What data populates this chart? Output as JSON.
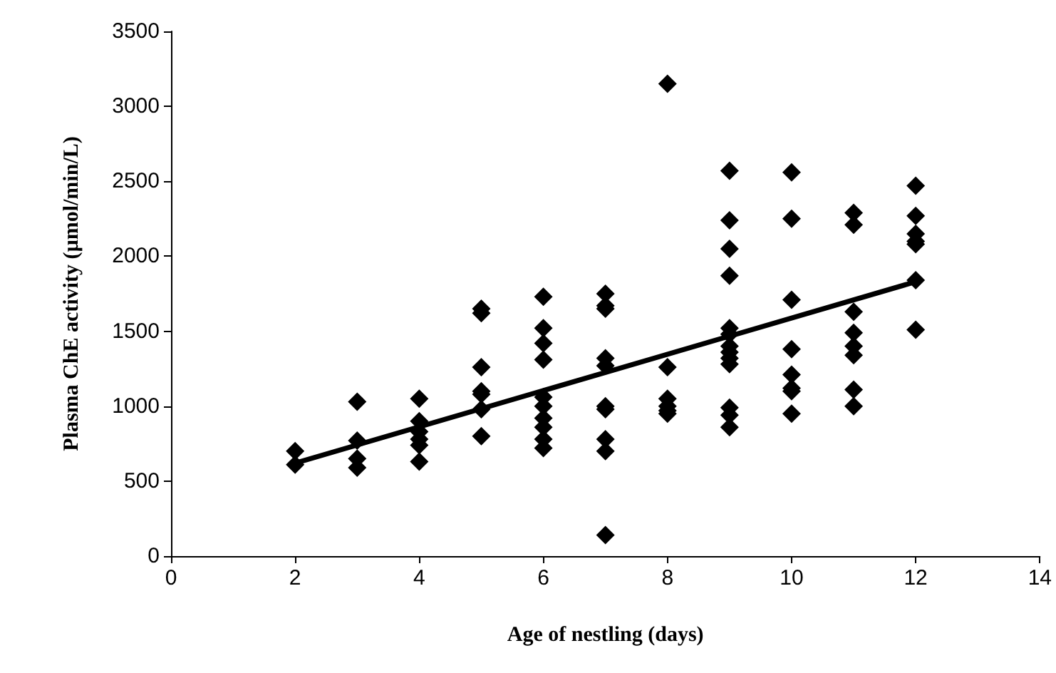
{
  "chart_data": {
    "type": "scatter",
    "xlabel": "Age of nestling (days)",
    "ylabel": "Plasma ChE activity (µmol/min/L)",
    "xlim": [
      0,
      14
    ],
    "xticks": [
      0,
      2,
      4,
      6,
      8,
      10,
      12,
      14
    ],
    "ylim": [
      0,
      3500
    ],
    "yticks": [
      0,
      500,
      1000,
      1500,
      2000,
      2500,
      3000,
      3500
    ],
    "grid": false,
    "marker": "diamond",
    "series": [
      {
        "color": "#000000",
        "x": [
          2,
          2,
          3,
          3,
          3,
          3,
          4,
          4,
          4,
          4,
          4,
          4,
          5,
          5,
          5,
          5,
          5,
          5,
          5,
          6,
          6,
          6,
          6,
          6,
          6,
          6,
          6,
          6,
          6,
          7,
          7,
          7,
          7,
          7,
          7,
          7,
          7,
          7,
          7,
          8,
          8,
          8,
          8,
          8,
          8,
          9,
          9,
          9,
          9,
          9,
          9,
          9,
          9,
          9,
          9,
          9,
          9,
          9,
          10,
          10,
          10,
          10,
          10,
          10,
          10,
          10,
          11,
          11,
          11,
          11,
          11,
          11,
          11,
          11,
          12,
          12,
          12,
          12,
          12,
          12,
          12
        ],
        "values": [
          700,
          610,
          1030,
          770,
          650,
          590,
          1050,
          900,
          830,
          780,
          740,
          630,
          1650,
          1620,
          1260,
          1100,
          1080,
          980,
          800,
          1730,
          1520,
          1420,
          1310,
          1060,
          1000,
          920,
          860,
          780,
          720,
          1750,
          1670,
          1650,
          1320,
          1270,
          1000,
          980,
          780,
          700,
          140,
          3150,
          1260,
          1050,
          1000,
          970,
          950,
          2570,
          2240,
          2050,
          1870,
          1520,
          1480,
          1400,
          1360,
          1320,
          1280,
          990,
          940,
          860,
          2560,
          2250,
          1710,
          1380,
          1210,
          1120,
          1100,
          950,
          2290,
          2210,
          1630,
          1490,
          1400,
          1340,
          1110,
          1000,
          2470,
          2270,
          2150,
          2100,
          2080,
          1840,
          1510
        ]
      },
      {
        "type": "line",
        "color": "#000000",
        "marker": "none",
        "line_style": "solid",
        "x": [
          2,
          12
        ],
        "values": [
          620,
          1830
        ]
      }
    ]
  }
}
